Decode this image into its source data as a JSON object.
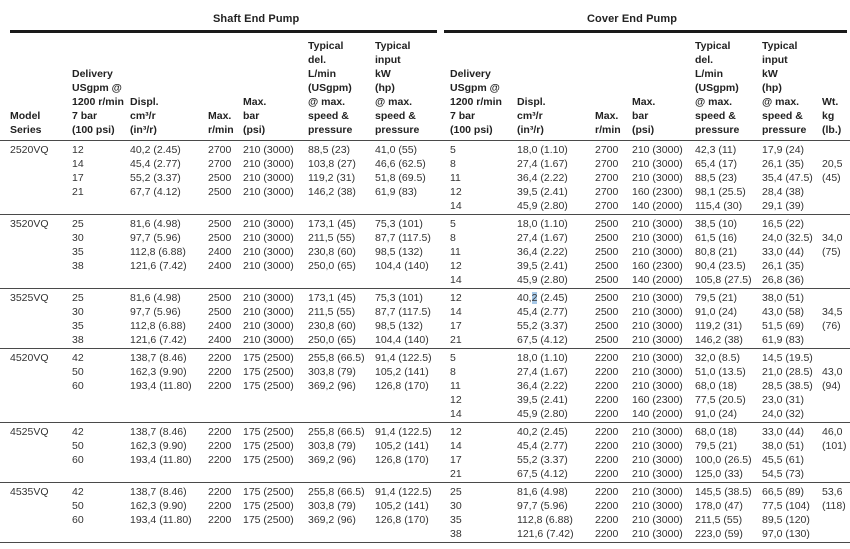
{
  "sections": {
    "shaft_title": "Shaft End Pump",
    "cover_title": "Cover End Pump"
  },
  "headers": {
    "model": [
      "Model",
      "Series"
    ],
    "shaft_delivery": [
      "Delivery",
      "USgpm @",
      "1200 r/min",
      "7 bar",
      "(100 psi)"
    ],
    "shaft_displ": [
      "Displ.",
      "cm³/r",
      "(in³/r)"
    ],
    "shaft_rmin": [
      "Max.",
      "r/min"
    ],
    "shaft_bar": [
      "Max.",
      "bar",
      "(psi)"
    ],
    "shaft_typ_del": [
      "Typical",
      "del.",
      "L/min",
      "(USgpm)",
      "@ max.",
      "speed &",
      "pressure"
    ],
    "shaft_typ_input": [
      "Typical",
      "input",
      "kW",
      "(hp)",
      "@ max.",
      "speed &",
      "pressure"
    ],
    "cover_delivery": [
      "Delivery",
      "USgpm @",
      "1200 r/min",
      "7 bar",
      "(100 psi)"
    ],
    "cover_displ": [
      "Displ.",
      "cm³/r",
      "(in³/r)"
    ],
    "cover_rmin": [
      "Max.",
      "r/min"
    ],
    "cover_bar": [
      "Max.",
      "bar",
      "(psi)"
    ],
    "cover_typ_del": [
      "Typical",
      "del.",
      "L/min",
      "(USgpm)",
      "@ max.",
      "speed &",
      "pressure"
    ],
    "cover_typ_input": [
      "Typical",
      "input",
      "kW",
      "(hp)",
      "@ max.",
      "speed &",
      "pressure"
    ],
    "wt": [
      "Wt.",
      "kg",
      "(lb.)"
    ]
  },
  "highlight_color": "#a6c8e8",
  "table": {
    "groups": [
      {
        "model": "2520VQ",
        "rows": [
          [
            "12",
            "40,2 (2.45)",
            "2700",
            "210 (3000)",
            "88,5 (23)",
            "41,0 (55)",
            "5",
            "18,0 (1.10)",
            "2700",
            "210 (3000)",
            "42,3 (11)",
            "17,9 (24)",
            ""
          ],
          [
            "14",
            "45,4 (2.77)",
            "2700",
            "210 (3000)",
            "103,8 (27)",
            "46,6 (62.5)",
            "8",
            "27,4 (1.67)",
            "2700",
            "210 (3000)",
            "65,4 (17)",
            "26,1 (35)",
            "20,5"
          ],
          [
            "17",
            "55,2 (3.37)",
            "2500",
            "210 (3000)",
            "119,2 (31)",
            "51,8 (69.5)",
            "11",
            "36,4 (2.22)",
            "2700",
            "210 (3000)",
            "88,5 (23)",
            "35,4 (47.5)",
            "(45)"
          ],
          [
            "21",
            "67,7 (4.12)",
            "2500",
            "210 (3000)",
            "146,2 (38)",
            "61,9 (83)",
            "12",
            "39,5 (2.41)",
            "2700",
            "160 (2300)",
            "98,1 (25.5)",
            "28,4 (38)",
            ""
          ],
          [
            "",
            "",
            "",
            "",
            "",
            "",
            "14",
            "45,9 (2.80)",
            "2700",
            "140 (2000)",
            "115,4 (30)",
            "29,1 (39)",
            ""
          ]
        ]
      },
      {
        "model": "3520VQ",
        "rows": [
          [
            "25",
            "81,6 (4.98)",
            "2500",
            "210 (3000)",
            "173,1 (45)",
            "75,3 (101)",
            "5",
            "18,0 (1.10)",
            "2500",
            "210 (3000)",
            "38,5 (10)",
            "16,5 (22)",
            ""
          ],
          [
            "30",
            "97,7 (5.96)",
            "2500",
            "210 (3000)",
            "211,5 (55)",
            "87,7 (117.5)",
            "8",
            "27,4 (1.67)",
            "2500",
            "210 (3000)",
            "61,5 (16)",
            "24,0 (32.5)",
            "34,0"
          ],
          [
            "35",
            "112,8 (6.88)",
            "2400",
            "210 (3000)",
            "230,8 (60)",
            "98,5 (132)",
            "11",
            "36,4 (2.22)",
            "2500",
            "210 (3000)",
            "80,8 (21)",
            "33,0 (44)",
            "(75)"
          ],
          [
            "38",
            "121,6 (7.42)",
            "2400",
            "210 (3000)",
            "250,0 (65)",
            "104,4 (140)",
            "12",
            "39,5 (2.41)",
            "2500",
            "160 (2300)",
            "90,4 (23.5)",
            "26,1 (35)",
            ""
          ],
          [
            "",
            "",
            "",
            "",
            "",
            "",
            "14",
            "45,9 (2.80)",
            "2500",
            "140 (2000)",
            "105,8 (27.5)",
            "26,8 (36)",
            ""
          ]
        ]
      },
      {
        "model": "3525VQ",
        "rows": [
          [
            "25",
            "81,6 (4.98)",
            "2500",
            "210 (3000)",
            "173,1 (45)",
            "75,3 (101)",
            "12",
            {
              "text": "40,2 (2.45)",
              "hl": [
                3,
                4
              ]
            },
            "2500",
            "210 (3000)",
            "79,5 (21)",
            "38,0 (51)",
            ""
          ],
          [
            "30",
            "97,7 (5.96)",
            "2500",
            "210 (3000)",
            "211,5 (55)",
            "87,7 (117.5)",
            "14",
            "45,4 (2.77)",
            "2500",
            "210 (3000)",
            "91,0 (24)",
            "43,0 (58)",
            "34,5"
          ],
          [
            "35",
            "112,8 (6.88)",
            "2400",
            "210 (3000)",
            "230,8 (60)",
            "98,5 (132)",
            "17",
            "55,2 (3.37)",
            "2500",
            "210 (3000)",
            "119,2 (31)",
            "51,5 (69)",
            "(76)"
          ],
          [
            "38",
            "121,6 (7.42)",
            "2400",
            "210 (3000)",
            "250,0 (65)",
            "104,4 (140)",
            "21",
            "67,5 (4.12)",
            "2500",
            "210 (3000)",
            "146,2 (38)",
            "61,9 (83)",
            ""
          ]
        ]
      },
      {
        "model": "4520VQ",
        "rows": [
          [
            "42",
            "138,7 (8.46)",
            "2200",
            "175 (2500)",
            "255,8 (66.5)",
            "91,4 (122.5)",
            "5",
            "18,0 (1.10)",
            "2200",
            "210 (3000)",
            "32,0 (8.5)",
            "14,5 (19.5)",
            ""
          ],
          [
            "50",
            "162,3 (9.90)",
            "2200",
            "175 (2500)",
            "303,8 (79)",
            "105,2 (141)",
            "8",
            "27,4 (1.67)",
            "2200",
            "210 (3000)",
            "51,0 (13.5)",
            "21,0 (28.5)",
            "43,0"
          ],
          [
            "60",
            "193,4 (11.80)",
            "2200",
            "175 (2500)",
            "369,2 (96)",
            "126,8 (170)",
            "11",
            "36,4 (2.22)",
            "2200",
            "210 (3000)",
            "68,0 (18)",
            "28,5 (38.5)",
            "(94)"
          ],
          [
            "",
            "",
            "",
            "",
            "",
            "",
            "12",
            "39,5 (2.41)",
            "2200",
            "160 (2300)",
            "77,5 (20.5)",
            "23,0 (31)",
            ""
          ],
          [
            "",
            "",
            "",
            "",
            "",
            "",
            "14",
            "45,9 (2.80)",
            "2200",
            "140 (2000)",
            "91,0 (24)",
            "24,0 (32)",
            ""
          ]
        ]
      },
      {
        "model": "4525VQ",
        "rows": [
          [
            "42",
            "138,7 (8.46)",
            "2200",
            "175 (2500)",
            "255,8 (66.5)",
            "91,4 (122.5)",
            "12",
            "40,2 (2.45)",
            "2200",
            "210 (3000)",
            "68,0 (18)",
            "33,0 (44)",
            "46,0"
          ],
          [
            "50",
            "162,3 (9.90)",
            "2200",
            "175 (2500)",
            "303,8 (79)",
            "105,2 (141)",
            "14",
            "45,4 (2.77)",
            "2200",
            "210 (3000)",
            "79,5 (21)",
            "38,0 (51)",
            "(101)"
          ],
          [
            "60",
            "193,4 (11.80)",
            "2200",
            "175 (2500)",
            "369,2 (96)",
            "126,8 (170)",
            "17",
            "55,2 (3.37)",
            "2200",
            "210 (3000)",
            "100,0 (26.5)",
            "45,5 (61)",
            ""
          ],
          [
            "",
            "",
            "",
            "",
            "",
            "",
            "21",
            "67,5 (4.12)",
            "2200",
            "210 (3000)",
            "125,0 (33)",
            "54,5 (73)",
            ""
          ]
        ]
      },
      {
        "model": "4535VQ",
        "rows": [
          [
            "42",
            "138,7 (8.46)",
            "2200",
            "175 (2500)",
            "255,8 (66.5)",
            "91,4 (122.5)",
            "25",
            "81,6 (4.98)",
            "2200",
            "210 (3000)",
            "145,5 (38.5)",
            "66,5 (89)",
            "53,6"
          ],
          [
            "50",
            "162,3 (9.90)",
            "2200",
            "175 (2500)",
            "303,8 (79)",
            "105,2 (141)",
            "30",
            "97,7 (5.96)",
            "2200",
            "210 (3000)",
            "178,0 (47)",
            "77,5 (104)",
            "(118)"
          ],
          [
            "60",
            "193,4 (11.80)",
            "2200",
            "175 (2500)",
            "369,2 (96)",
            "126,8 (170)",
            "35",
            "112,8 (6.88)",
            "2200",
            "210 (3000)",
            "211,5 (55)",
            "89,5 (120)",
            ""
          ],
          [
            "",
            "",
            "",
            "",
            "",
            "",
            "38",
            "121,6 (7.42)",
            "2200",
            "210 (3000)",
            "223,0 (59)",
            "97,0 (130)",
            ""
          ]
        ]
      }
    ]
  }
}
